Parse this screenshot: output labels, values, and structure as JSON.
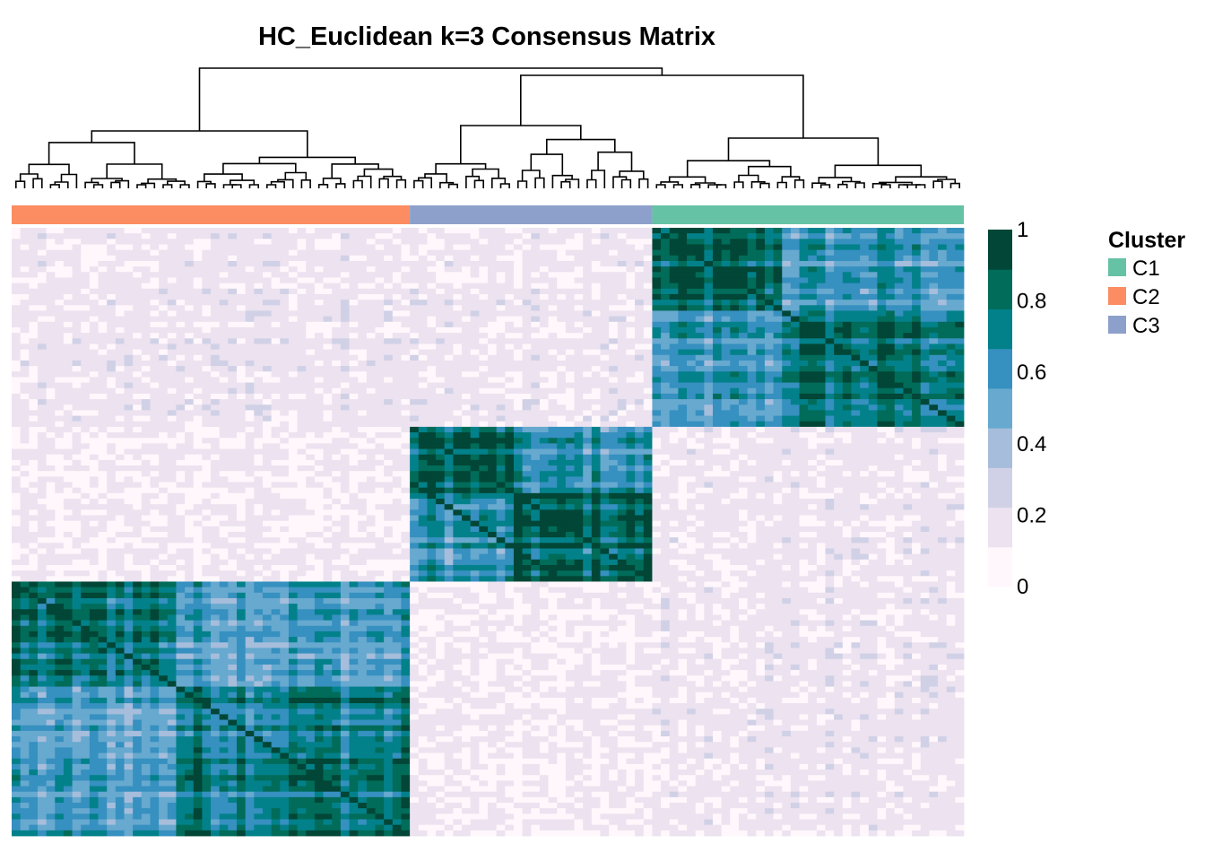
{
  "chart_data": {
    "type": "heatmap",
    "title": "HC_Euclidean k=3 Consensus Matrix",
    "value_range": [
      0,
      1
    ],
    "colorbar": {
      "ticks": [
        {
          "value": 1,
          "label": "1"
        },
        {
          "value": 0.8,
          "label": "0.8"
        },
        {
          "value": 0.6,
          "label": "0.6"
        },
        {
          "value": 0.4,
          "label": "0.4"
        },
        {
          "value": 0.2,
          "label": "0.2"
        },
        {
          "value": 0,
          "label": "0"
        }
      ],
      "palette": [
        "#FFF7FB",
        "#ECE2F0",
        "#D0D1E6",
        "#A6BDDB",
        "#67A9CF",
        "#3690C0",
        "#02818A",
        "#016C59",
        "#014636"
      ]
    },
    "legend": {
      "title": "Cluster",
      "placement": "right",
      "entries": [
        {
          "label": "C1",
          "color": "#66C2A5"
        },
        {
          "label": "C2",
          "color": "#FC8D62"
        },
        {
          "label": "C3",
          "color": "#8DA0CB"
        }
      ]
    },
    "column_annotation": [
      {
        "cluster": "C2",
        "share": 0.42
      },
      {
        "cluster": "C3",
        "share": 0.257
      },
      {
        "cluster": "C1",
        "share": 0.323
      }
    ],
    "row_blocks": [
      {
        "cluster": "C1",
        "share": 0.323
      },
      {
        "cluster": "C3",
        "share": 0.257
      },
      {
        "cluster": "C2",
        "share": 0.42
      }
    ],
    "block_mean_consensus": {
      "C1_C1": 0.82,
      "C1_C2": 0.15,
      "C1_C3": 0.15,
      "C2_C2": 0.8,
      "C2_C3": 0.12,
      "C3_C3": 0.88
    },
    "dendrogram": "top"
  }
}
